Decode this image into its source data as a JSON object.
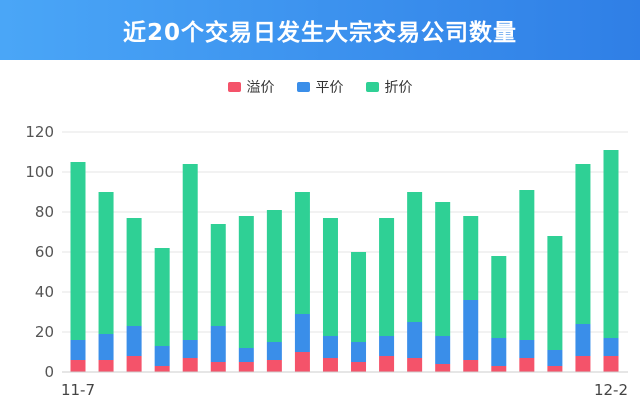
{
  "header": {
    "title": "近20个交易日发生大宗交易公司数量"
  },
  "colors": {
    "premium": "#f4536a",
    "par": "#3a8ee9",
    "discount": "#2fd095",
    "grid": "#e6e6e6",
    "axis": "#cccccc"
  },
  "chart_data": {
    "type": "bar",
    "stacked": true,
    "title": "近20个交易日发生大宗交易公司数量",
    "legend_position": "top-center",
    "ylim": [
      0,
      120
    ],
    "yticks": [
      "0",
      "20",
      "40",
      "60",
      "80",
      "100",
      "120"
    ],
    "grid": true,
    "x_start_label": "11-7",
    "x_end_label": "12-2",
    "series": [
      {
        "name": "溢价",
        "color": "#f4536a",
        "values": [
          6,
          6,
          8,
          3,
          7,
          5,
          5,
          6,
          10,
          7,
          5,
          8,
          7,
          4,
          6,
          3,
          7,
          3,
          8,
          8
        ]
      },
      {
        "name": "平价",
        "color": "#3a8ee9",
        "values": [
          10,
          13,
          15,
          10,
          9,
          18,
          7,
          9,
          19,
          11,
          10,
          10,
          18,
          14,
          30,
          14,
          9,
          8,
          16,
          9
        ]
      },
      {
        "name": "折价",
        "color": "#2fd095",
        "values": [
          89,
          71,
          54,
          49,
          88,
          51,
          66,
          66,
          61,
          59,
          45,
          59,
          65,
          67,
          42,
          41,
          75,
          57,
          80,
          94
        ]
      }
    ]
  }
}
